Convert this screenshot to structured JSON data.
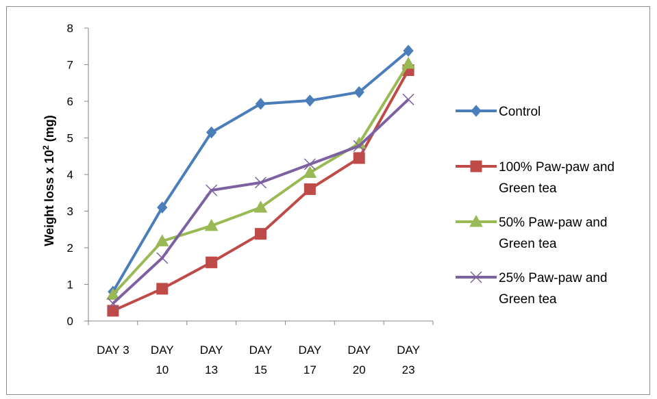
{
  "chart_data": {
    "type": "line",
    "categories": [
      [
        "DAY 3"
      ],
      [
        "DAY",
        "10"
      ],
      [
        "DAY",
        "13"
      ],
      [
        "DAY",
        "15"
      ],
      [
        "DAY",
        "17"
      ],
      [
        "DAY",
        "20"
      ],
      [
        "DAY",
        "23"
      ]
    ],
    "ylabel_main": "Weight loss x 10",
    "ylabel_sup": "2",
    "ylabel_unit": " (mg)",
    "ylim": [
      0,
      8
    ],
    "yticks": [
      "0",
      "1",
      "2",
      "3",
      "4",
      "5",
      "6",
      "7",
      "8"
    ],
    "grid": false,
    "legend_position": "right",
    "series": [
      {
        "name": [
          "Control"
        ],
        "color": "#4a7ebb",
        "marker": "diamond",
        "values": [
          0.8,
          3.1,
          5.15,
          5.93,
          6.02,
          6.25,
          7.38
        ]
      },
      {
        "name": [
          "100% Paw-paw and",
          "Green tea"
        ],
        "color": "#be4b48",
        "marker": "square",
        "values": [
          0.28,
          0.88,
          1.6,
          2.38,
          3.6,
          4.45,
          6.85
        ]
      },
      {
        "name": [
          "50% Paw-paw and",
          "Green tea"
        ],
        "color": "#98b954",
        "marker": "triangle",
        "values": [
          0.72,
          2.18,
          2.6,
          3.1,
          4.05,
          4.85,
          7.03
        ]
      },
      {
        "name": [
          "25% Paw-paw and",
          "Green tea"
        ],
        "color": "#7d60a0",
        "marker": "x",
        "values": [
          0.48,
          1.72,
          3.57,
          3.78,
          4.28,
          4.78,
          6.05
        ]
      }
    ]
  }
}
